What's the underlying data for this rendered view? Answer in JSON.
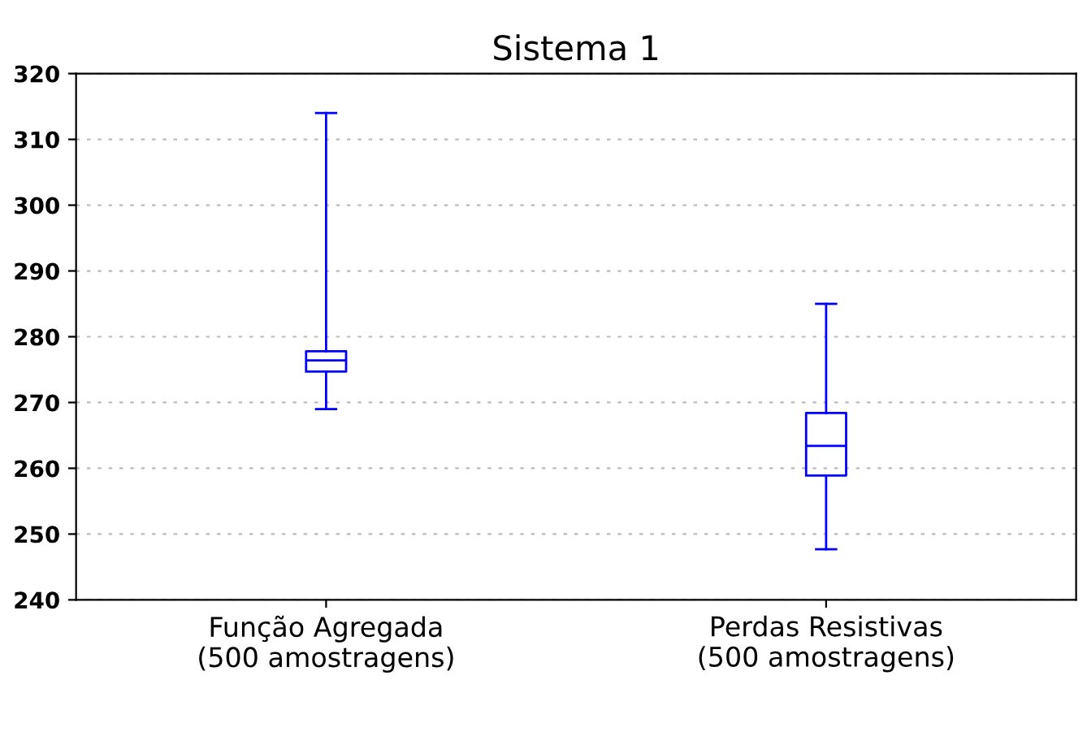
{
  "chart_data": {
    "type": "box",
    "title": "Sistema 1",
    "categories": [
      "Função Agregada\n(500 amostragens)",
      "Perdas Resistivas\n(500 amostragens)"
    ],
    "boxes": [
      {
        "low": 269,
        "q1": 274.7,
        "median": 276.4,
        "q3": 277.8,
        "high": 314
      },
      {
        "low": 247.7,
        "q1": 258.9,
        "median": 263.4,
        "q3": 268.4,
        "high": 285
      }
    ],
    "color": "#0000ff",
    "ylim": [
      240,
      320
    ],
    "yticks": [
      240,
      250,
      260,
      270,
      280,
      290,
      300,
      310,
      320
    ],
    "grid": "y"
  }
}
